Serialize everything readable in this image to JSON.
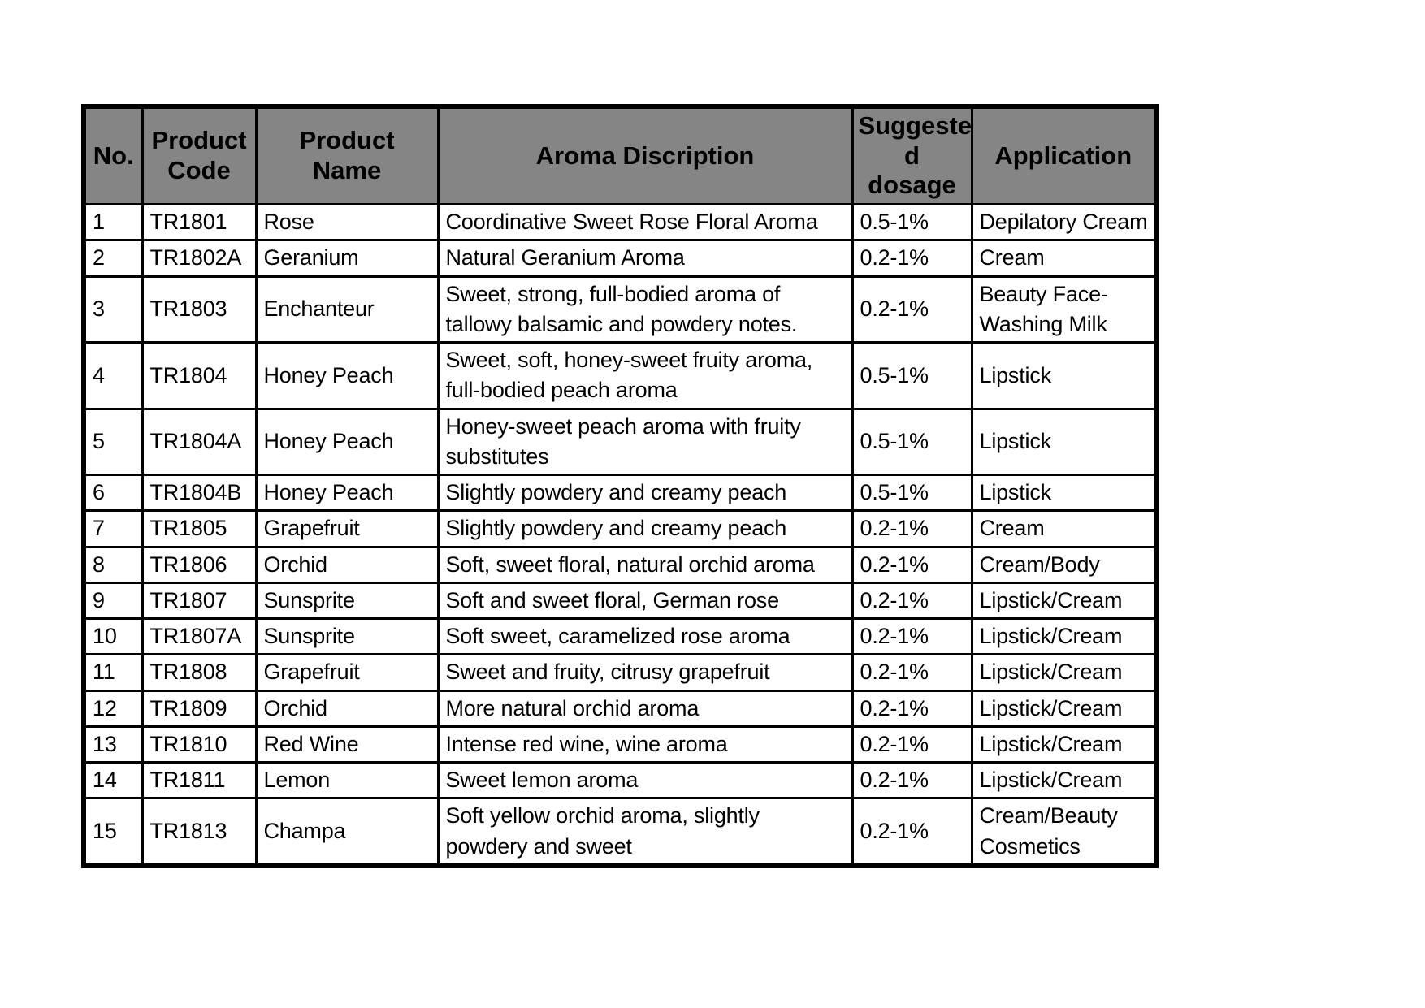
{
  "table": {
    "title": "fragrance-products-table",
    "header_bg": "#858585",
    "border_color": "#000000",
    "headers": [
      "No.",
      "Product Code",
      "Product  Name",
      "Aroma Discription",
      "Suggeste\nd dosage",
      "Application"
    ],
    "rows": [
      {
        "no": "1",
        "code": "TR1801",
        "name": "Rose",
        "aroma": "Coordinative Sweet Rose Floral Aroma",
        "dosage": "0.5-1%",
        "application": "Depilatory Cream"
      },
      {
        "no": "2",
        "code": "TR1802A",
        "name": "Geranium",
        "aroma": "Natural Geranium Aroma",
        "dosage": "0.2-1%",
        "application": "Cream"
      },
      {
        "no": "3",
        "code": "TR1803",
        "name": "Enchanteur",
        "aroma": "Sweet, strong, full-bodied aroma of tallowy balsamic and powdery notes.",
        "dosage": "0.2-1%",
        "application": "Beauty Face-Washing Milk"
      },
      {
        "no": "4",
        "code": "TR1804",
        "name": "Honey Peach",
        "aroma": "Sweet, soft, honey-sweet fruity aroma, full-bodied peach aroma",
        "dosage": "0.5-1%",
        "application": "Lipstick"
      },
      {
        "no": "5",
        "code": "TR1804A",
        "name": "Honey Peach",
        "aroma": "Honey-sweet peach aroma with fruity substitutes",
        "dosage": "0.5-1%",
        "application": "Lipstick"
      },
      {
        "no": "6",
        "code": "TR1804B",
        "name": "Honey Peach",
        "aroma": "Slightly powdery and creamy peach",
        "dosage": "0.5-1%",
        "application": "Lipstick"
      },
      {
        "no": "7",
        "code": "TR1805",
        "name": "Grapefruit",
        "aroma": "Slightly powdery and creamy peach",
        "dosage": "0.2-1%",
        "application": "Cream"
      },
      {
        "no": "8",
        "code": "TR1806",
        "name": "Orchid",
        "aroma": "Soft, sweet floral, natural orchid aroma",
        "dosage": "0.2-1%",
        "application": "Cream/Body"
      },
      {
        "no": "9",
        "code": "TR1807",
        "name": "Sunsprite",
        "aroma": "Soft and sweet floral, German rose",
        "dosage": "0.2-1%",
        "application": "Lipstick/Cream"
      },
      {
        "no": "10",
        "code": "TR1807A",
        "name": "Sunsprite",
        "aroma": "Soft sweet, caramelized rose aroma",
        "dosage": "0.2-1%",
        "application": "Lipstick/Cream"
      },
      {
        "no": "11",
        "code": "TR1808",
        "name": "Grapefruit",
        "aroma": "Sweet and fruity, citrusy grapefruit",
        "dosage": "0.2-1%",
        "application": "Lipstick/Cream"
      },
      {
        "no": "12",
        "code": "TR1809",
        "name": "Orchid",
        "aroma": "More natural orchid aroma",
        "dosage": "0.2-1%",
        "application": "Lipstick/Cream"
      },
      {
        "no": "13",
        "code": "TR1810",
        "name": "Red Wine",
        "aroma": "Intense red wine, wine aroma",
        "dosage": "0.2-1%",
        "application": "Lipstick/Cream"
      },
      {
        "no": "14",
        "code": "TR1811",
        "name": "Lemon",
        "aroma": "Sweet lemon aroma",
        "dosage": "0.2-1%",
        "application": "Lipstick/Cream"
      },
      {
        "no": "15",
        "code": "TR1813",
        "name": "Champa",
        "aroma": "Soft yellow orchid aroma, slightly powdery and sweet",
        "dosage": "0.2-1%",
        "application": "Cream/Beauty Cosmetics"
      }
    ]
  }
}
